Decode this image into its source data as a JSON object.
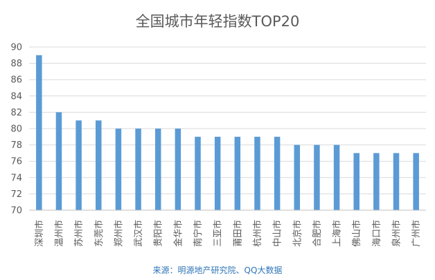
{
  "chart_data": {
    "type": "bar",
    "title": "全国城市年轻指数TOP20",
    "categories": [
      "深圳市",
      "温州市",
      "苏州市",
      "东莞市",
      "郑州市",
      "武汉市",
      "贵阳市",
      "金华市",
      "南宁市",
      "三亚市",
      "莆田市",
      "杭州市",
      "中山市",
      "北京市",
      "合肥市",
      "上海市",
      "佛山市",
      "海口市",
      "泉州市",
      "广州市"
    ],
    "values": [
      89,
      82,
      81,
      81,
      80,
      80,
      80,
      80,
      79,
      79,
      79,
      79,
      79,
      78,
      78,
      78,
      77,
      77,
      77,
      77
    ],
    "ylim": [
      70,
      90
    ],
    "yticks": [
      70,
      72,
      74,
      76,
      78,
      80,
      82,
      84,
      86,
      88,
      90
    ],
    "xlabel": "",
    "ylabel": "",
    "grid": true,
    "bar_color": "#5b9bd5"
  },
  "source_note": "来源：明源地产研究院、QQ大数据"
}
